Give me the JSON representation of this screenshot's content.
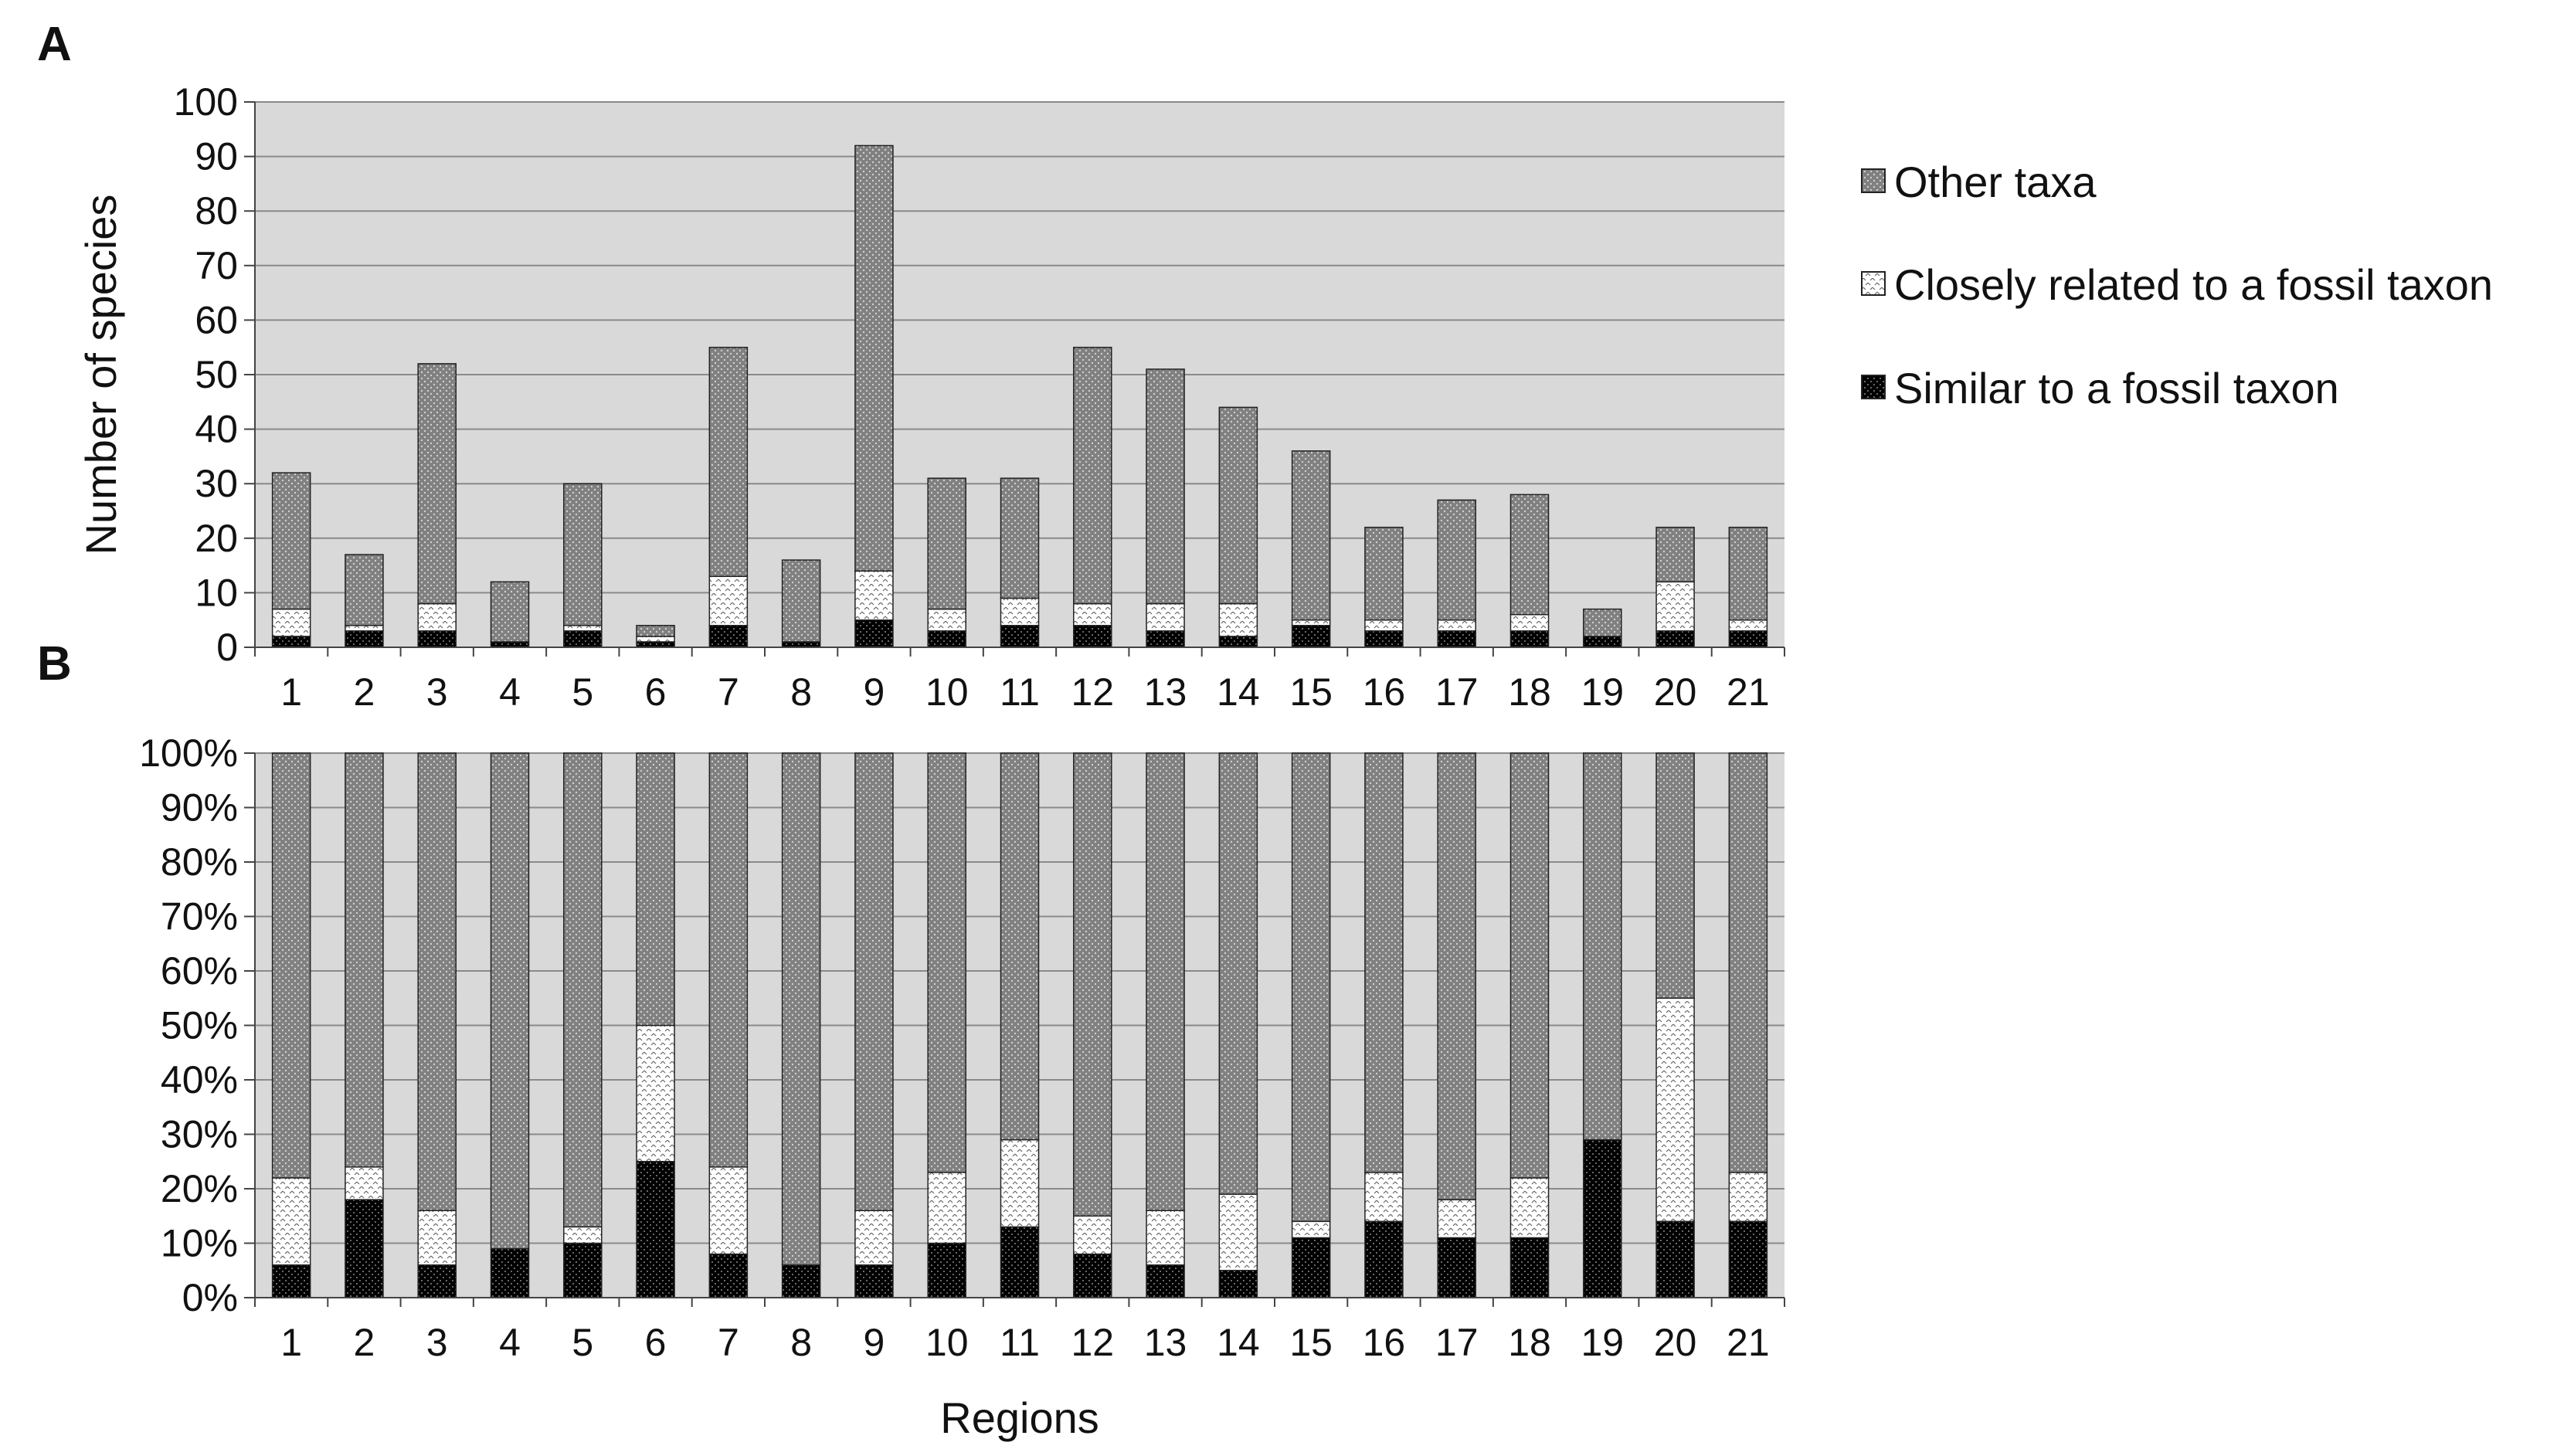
{
  "figure": {
    "panel_a_label": "A",
    "panel_b_label": "B",
    "colors": {
      "plot_bg": "#d9d9d9",
      "grid": "#8a8a8a",
      "other": "#808080",
      "close": "#ffffff",
      "similar": "#000000"
    }
  },
  "legend": {
    "items": [
      {
        "label": "Other taxa",
        "pattern": "other"
      },
      {
        "label": "Closely related to a fossil taxon",
        "pattern": "close"
      },
      {
        "label": "Similar to a fossil taxon",
        "pattern": "similar"
      }
    ]
  },
  "chart_data": [
    {
      "type": "bar",
      "stacked": true,
      "panel": "A",
      "categories": [
        "1",
        "2",
        "3",
        "4",
        "5",
        "6",
        "7",
        "8",
        "9",
        "10",
        "11",
        "12",
        "13",
        "14",
        "15",
        "16",
        "17",
        "18",
        "19",
        "20",
        "21"
      ],
      "series": [
        {
          "name": "Similar to a fossil taxon",
          "values": [
            2,
            3,
            3,
            1,
            3,
            1,
            4,
            1,
            5,
            3,
            4,
            4,
            3,
            2,
            4,
            3,
            3,
            3,
            2,
            3,
            3
          ]
        },
        {
          "name": "Closely related to a fossil taxon",
          "values": [
            5,
            1,
            5,
            0,
            1,
            1,
            9,
            0,
            9,
            4,
            5,
            4,
            5,
            6,
            1,
            2,
            2,
            3,
            0,
            9,
            2
          ]
        },
        {
          "name": "Other taxa",
          "values": [
            25,
            13,
            44,
            11,
            26,
            2,
            42,
            15,
            78,
            24,
            22,
            47,
            43,
            36,
            31,
            17,
            22,
            22,
            5,
            10,
            17
          ]
        }
      ],
      "ylabel": "Number of species",
      "ylim": [
        0,
        100
      ],
      "yticks": [
        "0",
        "10",
        "20",
        "30",
        "40",
        "50",
        "60",
        "70",
        "80",
        "90",
        "100"
      ],
      "grid": true,
      "legend": "right"
    },
    {
      "type": "bar",
      "stacked": true,
      "panel": "B",
      "categories": [
        "1",
        "2",
        "3",
        "4",
        "5",
        "6",
        "7",
        "8",
        "9",
        "10",
        "11",
        "12",
        "13",
        "14",
        "15",
        "16",
        "17",
        "18",
        "19",
        "20",
        "21"
      ],
      "series": [
        {
          "name": "Similar to a fossil taxon",
          "values": [
            6,
            18,
            6,
            9,
            10,
            25,
            8,
            6,
            6,
            10,
            13,
            8,
            6,
            5,
            11,
            14,
            11,
            11,
            29,
            14,
            14
          ]
        },
        {
          "name": "Closely related to a fossil taxon",
          "values": [
            16,
            6,
            10,
            0,
            3,
            25,
            16,
            0,
            10,
            13,
            16,
            7,
            10,
            14,
            3,
            9,
            7,
            11,
            0,
            41,
            9
          ]
        },
        {
          "name": "Other taxa",
          "values": [
            78,
            76,
            84,
            91,
            87,
            50,
            76,
            94,
            84,
            77,
            71,
            85,
            84,
            81,
            86,
            77,
            82,
            78,
            71,
            45,
            77
          ]
        }
      ],
      "xlabel": "Regions",
      "ylim": [
        0,
        100
      ],
      "yticks": [
        "0%",
        "10%",
        "20%",
        "30%",
        "40%",
        "50%",
        "60%",
        "70%",
        "80%",
        "90%",
        "100%"
      ],
      "grid": true
    }
  ]
}
